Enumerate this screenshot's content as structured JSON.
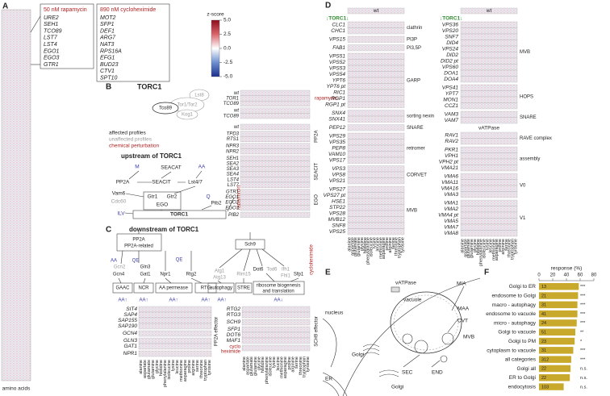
{
  "panel_labels": [
    "A",
    "B",
    "C",
    "D",
    "E",
    "F"
  ],
  "amino_acids": [
    "alanine",
    "aspartate",
    "glutamate",
    "glutamine",
    "glycine",
    "histidine",
    "phenylalanine",
    "isoleucine",
    "lysine",
    "leucine",
    "methionine",
    "asparagine",
    "proline",
    "arginine",
    "serine",
    "threonine",
    "tryptophan",
    "tyrosine"
  ],
  "A": {
    "boxes": [
      {
        "title": "50 nM rapamycin",
        "genes": [
          "URE2",
          "SEH1",
          "TCO89",
          "LST7",
          "LST4",
          "EGO1",
          "EGO3",
          "GTR1"
        ]
      },
      {
        "title": "890 nM cycloheximide",
        "genes": [
          "MOT2",
          "SFP1",
          "DEF1",
          "ARG7",
          "NAT3",
          "RPS16A",
          "EFG1",
          "BUD23",
          "CTV1",
          "SPT10"
        ]
      }
    ],
    "colorbar": {
      "title": "z-score",
      "lim": [
        -5,
        5
      ],
      "ticks": [
        {
          "value": 5,
          "label": "5.0"
        },
        {
          "value": 2.5,
          "label": "2.5"
        },
        {
          "value": 0,
          "label": "0.0"
        },
        {
          "value": -2.5,
          "label": "-2.5"
        },
        {
          "value": -5,
          "label": "-5.0"
        }
      ]
    },
    "x_label": "amino acids"
  },
  "B": {
    "complex": {
      "title": "TORC1",
      "subunits": [
        "Lst8",
        "Tor1/Tor2",
        "Tco89",
        "Kog1"
      ]
    },
    "legend": [
      "affected profiles",
      "unaffected profiles",
      "chemical perturbation"
    ],
    "diagram": {
      "title": "upstream of TORC1",
      "nodes": [
        "M",
        "SEACAT",
        "AA",
        "PP2A",
        "SEACIT",
        "Lst4/7",
        "Vam6",
        "Cdc60",
        "Gtr1",
        "Gtr2",
        "EGO",
        "Q",
        "Pib2",
        "ILV",
        "TORC1",
        "rapamycin"
      ]
    },
    "heatmap_top": [
      {
        "genes": [
          "wt",
          "TOR1",
          "TCO89"
        ],
        "label": "rapamycin"
      },
      {
        "genes": [
          "wt",
          "TCO89"
        ]
      }
    ],
    "heatmap_bottom": [
      {
        "genes": [
          "wt"
        ]
      },
      {
        "genes": [
          "TPD3",
          "RTS1"
        ],
        "label": "PP2A"
      },
      {
        "genes": [
          "NPR3",
          "NPR2"
        ]
      },
      {
        "genes": [
          "SEH1",
          "SEA2",
          "SEA3",
          "SEA4",
          "LST4",
          "LST7"
        ],
        "label": "SEACIT"
      },
      {
        "genes": [
          "GTR1",
          "EGO1",
          "EGO2",
          "EGO3"
        ],
        "label": "EGO"
      },
      {
        "genes": [
          "PIB2"
        ]
      }
    ]
  },
  "C": {
    "diagram": {
      "title": "downstream of TORC1",
      "nodes": [
        "PP2A",
        "PP2A-related",
        "Sch9",
        "AA",
        "QE",
        "QE",
        "Gcn2",
        "Gln3",
        "Gcn4",
        "Gat1",
        "Npr1",
        "Rtg2",
        "GAAC",
        "NCR",
        "AA permease",
        "RTG",
        "AA↑",
        "AA↑",
        "AA↑",
        "AA↑",
        "Atg1",
        "Atg13",
        "Rim15",
        "Dot6",
        "Tod6",
        "Ifh1",
        "Fhl1",
        "Sfp1",
        "autophagy",
        "STRE",
        "ribosome biogenesis",
        "and translation",
        "AA↑",
        "AA↓",
        "cycloheximide"
      ]
    },
    "left": {
      "groups": [
        {
          "genes": [
            "SIT4",
            "SAP4",
            "SAP155",
            "SAP190"
          ]
        },
        {
          "genes": [
            "GCN4"
          ]
        },
        {
          "genes": [
            "GLN3",
            "GAT1"
          ]
        },
        {
          "genes": [
            "NPR1"
          ]
        }
      ],
      "label": "PP2A effector"
    },
    "right": {
      "groups": [
        {
          "genes": [
            "RTG2",
            "RTG3"
          ]
        },
        {
          "genes": [
            "SCH9"
          ]
        },
        {
          "genes": [
            "SFP1",
            "DOT6",
            "MAF1"
          ]
        }
      ],
      "perturbation": [
        "cyclo",
        "heximide"
      ],
      "label": "SCH9 effector"
    }
  },
  "D": {
    "header": "wt",
    "condition": "↓TORC1↓",
    "left": {
      "groups": [
        {
          "genes": [
            "CLC1",
            "CHC1"
          ],
          "label": "clathrin"
        },
        {
          "genes": [
            "VPS15"
          ],
          "label": "PI3P"
        },
        {
          "genes": [
            "FAB1"
          ],
          "label": "PI3,5P"
        },
        {
          "genes": [
            "VPS51",
            "VPS52",
            "VPS53",
            "VPS54",
            "YPT6",
            "YPT6 pt",
            "RIC1",
            "RGP1",
            "RGP1 pt"
          ],
          "label": "GARP"
        },
        {
          "genes": [
            "SNX4",
            "SNX41"
          ],
          "label": "sorting nexin"
        },
        {
          "genes": [
            "PEP12"
          ],
          "label": "SNARE"
        },
        {
          "genes": [
            "VPS29",
            "VPS35",
            "PEP8",
            "VAM10",
            "VPS17"
          ],
          "label": "retromer"
        },
        {
          "genes": [
            "VPS3",
            "VPS8",
            "VPS21"
          ],
          "label": "CORVET"
        },
        {
          "genes": [
            "VPS27",
            "VPS27 pt",
            "HSE1",
            "STP22",
            "VPS28",
            "MVB12",
            "SNF8",
            "VPS25"
          ],
          "label": "MVB"
        }
      ]
    },
    "right": {
      "groups": [
        {
          "genes": [
            "VPS36",
            "VPS20",
            "SNF7",
            "DID4",
            "VPS24",
            "DID2",
            "DID2 pt",
            "VPS60",
            "DOA1",
            "DOA4"
          ],
          "label": "MVB"
        },
        {
          "genes": [
            "VPS41",
            "YPT7",
            "MON1",
            "CCZ1"
          ],
          "label": "HOPS"
        },
        {
          "genes": [
            "VAM3",
            "VAM7"
          ],
          "label": "SNARE"
        }
      ],
      "vatpase_title": "vATPase",
      "vatpase_groups": [
        {
          "genes": [
            "RAV1",
            "RAV2"
          ],
          "label": "RAVE complex"
        },
        {
          "genes": [
            "PKR1",
            "VPH1",
            "VPH2 pt",
            "VMA21"
          ],
          "label": "assembly"
        },
        {
          "genes": [
            "VMA6",
            "VMA11",
            "VMA16",
            "VMA3"
          ],
          "label": "V0"
        },
        {
          "genes": [
            "VMA1",
            "VMA2",
            "VMA4 pt",
            "VMA5",
            "VMA7",
            "VMA8"
          ],
          "label": "V1"
        }
      ]
    }
  },
  "E": {
    "labels": [
      "vATPase",
      "vacuole",
      "nucleus",
      "MIA",
      "MAA",
      "CVT",
      "MVB",
      "Golgi",
      "ER",
      "END",
      "SEC",
      "Golgi"
    ]
  },
  "F": {
    "type": "bar",
    "x_label": "response (%)",
    "categories": [
      "Golgi to ER",
      "endosome to Golgi",
      "macro - autophagy",
      "endosome to vacuole",
      "micro - autophagy",
      "Golgi to vacuole",
      "Golgi to PM",
      "cytoplasm to vacuole",
      "all categories",
      "Golgi all",
      "ER to Golgi",
      "endocytosis"
    ],
    "values": [
      58,
      57,
      56,
      56,
      55,
      53,
      52,
      50,
      47,
      46,
      45,
      36
    ],
    "n": [
      13,
      21,
      31,
      41,
      24,
      51,
      23,
      31,
      312,
      22,
      22,
      103
    ],
    "significance": [
      "***",
      "***",
      "***",
      "***",
      "***",
      "**",
      "*",
      "***",
      "***",
      "n.s.",
      "n.s.",
      "n.s."
    ],
    "color": "#c9a92c",
    "xlim": [
      0,
      80
    ],
    "xticks": [
      0,
      20,
      40,
      60,
      80
    ]
  }
}
